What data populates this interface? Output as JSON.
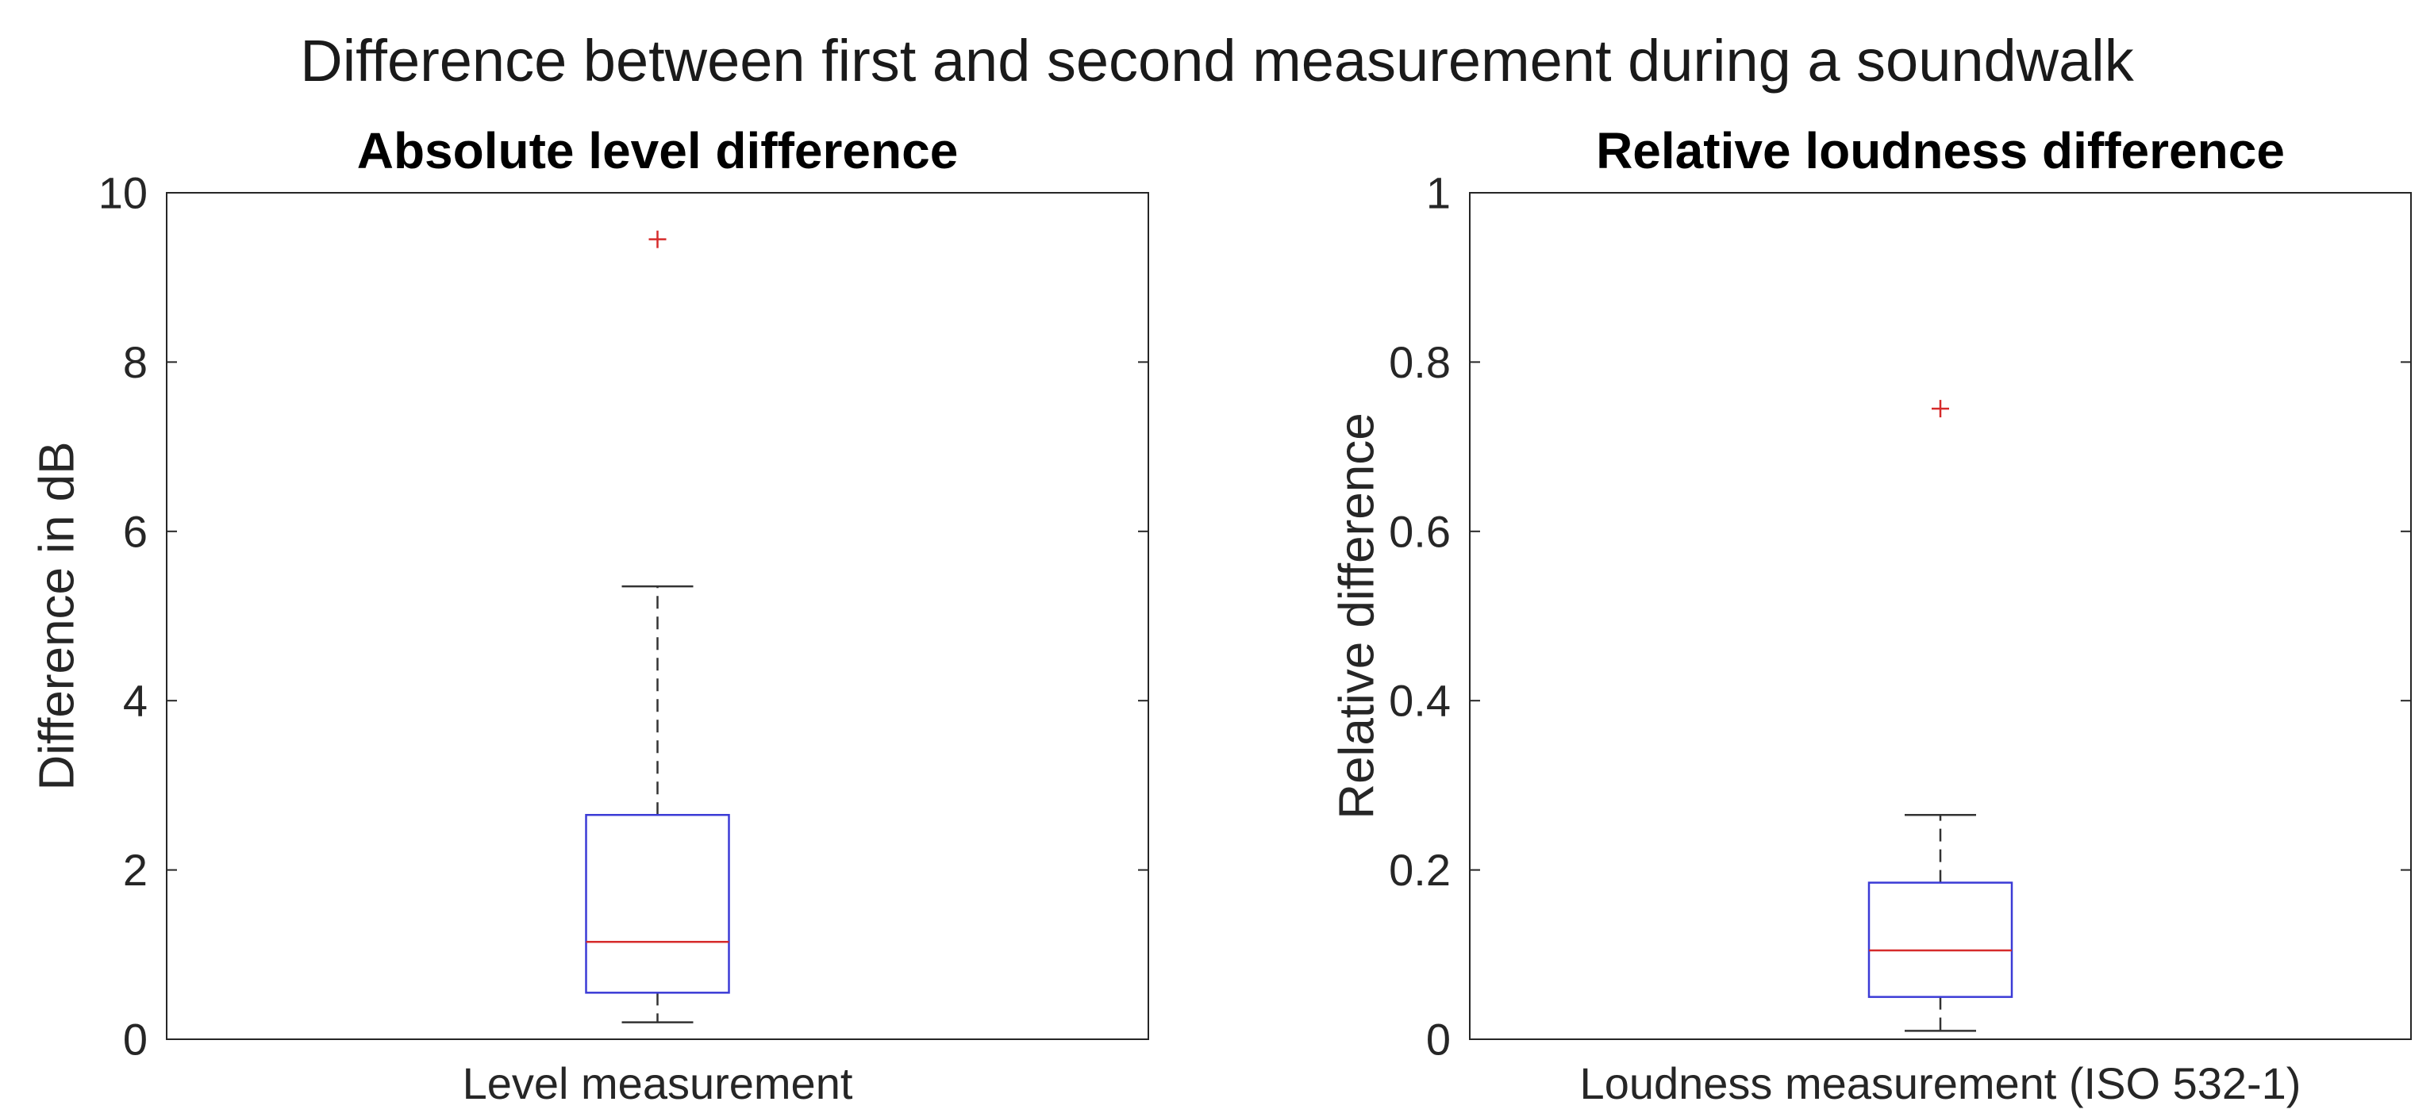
{
  "figure": {
    "title": "Difference between first and second measurement during a soundwalk"
  },
  "chart_data": [
    {
      "type": "box",
      "title": "Absolute level difference",
      "xlabel": "Level measurement",
      "ylabel": "Difference in dB",
      "ylim": [
        0,
        10
      ],
      "yticks": [
        0,
        2,
        4,
        6,
        8,
        10
      ],
      "ytick_labels": [
        "0",
        "2",
        "4",
        "6",
        "8",
        "10"
      ],
      "grid": false,
      "box": {
        "whisker_low": 0.2,
        "q1": 0.55,
        "median": 1.15,
        "q3": 2.65,
        "whisker_high": 5.35
      },
      "outliers": [
        9.45
      ],
      "colors": {
        "box": "#3b3bd6",
        "median": "#d62b2b",
        "outlier": "#d62b2b",
        "whisker": "#333333"
      }
    },
    {
      "type": "box",
      "title": "Relative loudness difference",
      "xlabel": "Loudness measurement (ISO 532-1)",
      "ylabel": "Relative difference",
      "ylim": [
        0,
        1
      ],
      "yticks": [
        0,
        0.2,
        0.4,
        0.6,
        0.8,
        1
      ],
      "ytick_labels": [
        "0",
        "0.2",
        "0.4",
        "0.6",
        "0.8",
        "1"
      ],
      "grid": false,
      "box": {
        "whisker_low": 0.01,
        "q1": 0.05,
        "median": 0.105,
        "q3": 0.185,
        "whisker_high": 0.265
      },
      "outliers": [
        0.745
      ],
      "colors": {
        "box": "#3b3bd6",
        "median": "#d62b2b",
        "outlier": "#d62b2b",
        "whisker": "#333333"
      }
    }
  ]
}
